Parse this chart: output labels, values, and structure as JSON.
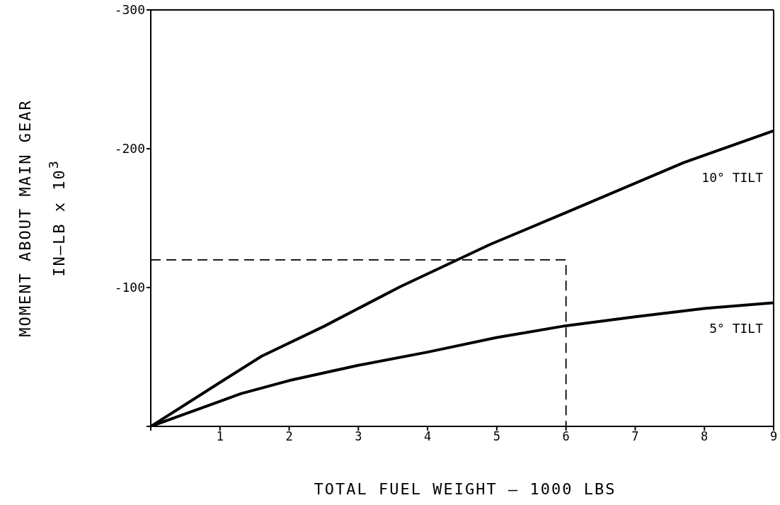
{
  "chart_data": {
    "type": "line",
    "xlabel": "TOTAL FUEL WEIGHT – 1000 LBS",
    "ylabel": "MOMENT ABOUT MAIN GEAR\nIN–LB x 10$^{3}$",
    "xlim": [
      0,
      9
    ],
    "xticks": [
      {
        "value": 0,
        "label": null
      },
      1,
      2,
      3,
      4,
      5,
      6,
      7,
      8,
      9
    ],
    "ylim": [
      0,
      -300
    ],
    "yticks": [
      {
        "value": 0,
        "label": null
      },
      -100,
      -200,
      -300
    ],
    "marker": "none",
    "series": [
      {
        "name": "10° TILT",
        "color": "#000000",
        "x": [
          0,
          1,
          1.6,
          2.5,
          3.6,
          4.9,
          6,
          7.7,
          9
        ],
        "values": [
          0,
          -31.6,
          -50.5,
          -72,
          -100.5,
          -131,
          -154,
          -190,
          -213
        ]
      },
      {
        "name": "5° TILT",
        "color": "#000000",
        "x": [
          0,
          1,
          1.3,
          2,
          3,
          4,
          5,
          6,
          7,
          8,
          9
        ],
        "values": [
          0,
          -18,
          -23.5,
          -33,
          -44,
          -53.5,
          -64,
          -72.5,
          -79,
          -85,
          -89
        ]
      },
      {
        "color": "#000000",
        "line_style": "dashed",
        "x": [
          0,
          6,
          6
        ],
        "values": [
          -120,
          -120,
          0
        ]
      }
    ]
  }
}
